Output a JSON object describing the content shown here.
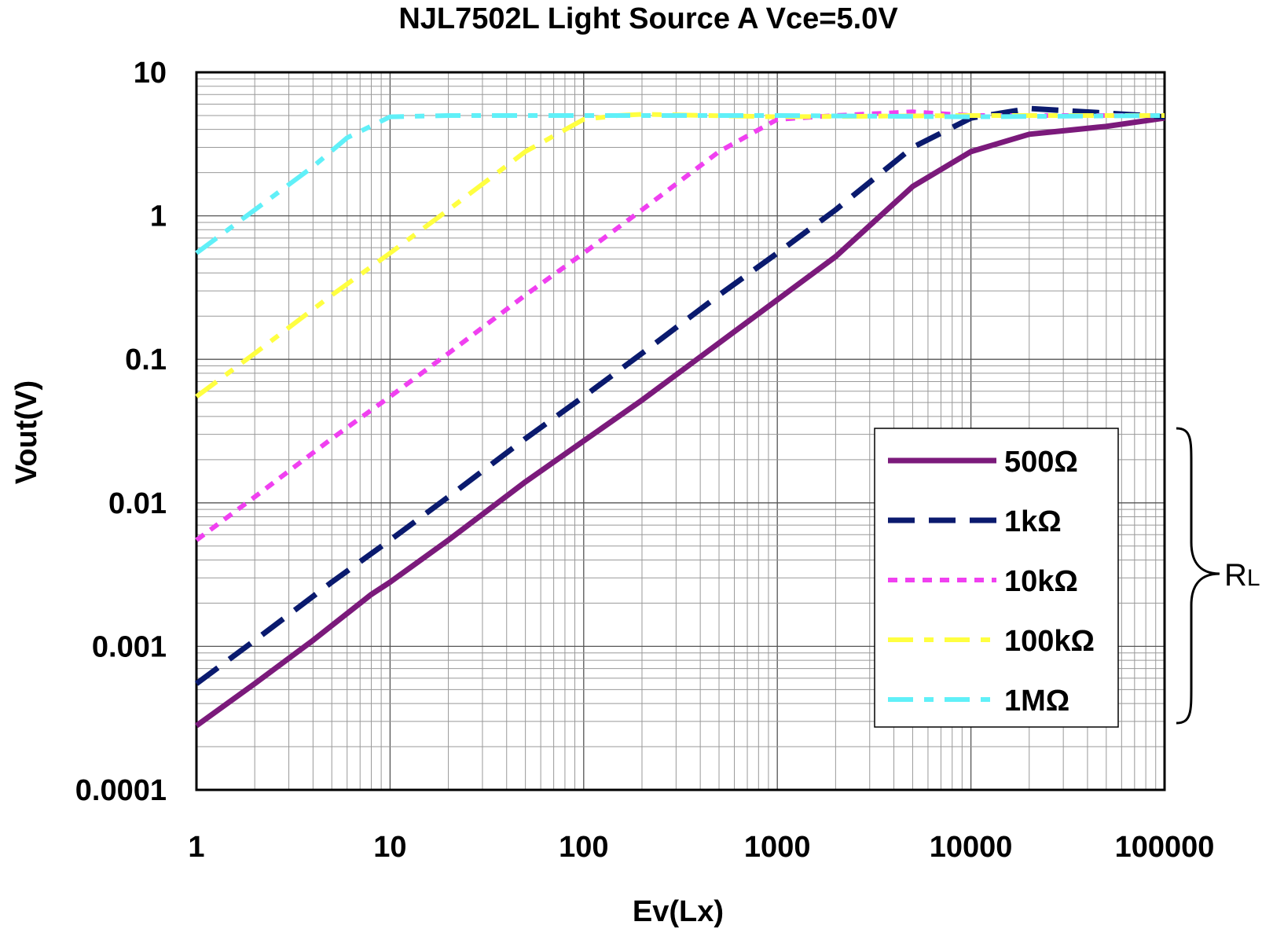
{
  "chart_data": {
    "type": "line",
    "title": "NJL7502L Light Source A Vce=5.0V",
    "xlabel": "Ev(Lx)",
    "ylabel": "Vout(V)",
    "x_scale": "log",
    "y_scale": "log",
    "xlim": [
      1,
      100000
    ],
    "ylim": [
      0.0001,
      10
    ],
    "x_ticks": [
      {
        "value": 1,
        "label": "1"
      },
      {
        "value": 10,
        "label": "10"
      },
      {
        "value": 100,
        "label": "100"
      },
      {
        "value": 1000,
        "label": "1000"
      },
      {
        "value": 10000,
        "label": "10000"
      },
      {
        "value": 100000,
        "label": "100000"
      }
    ],
    "y_ticks": [
      {
        "value": 10,
        "label": "10"
      },
      {
        "value": 1,
        "label": "1"
      },
      {
        "value": 0.1,
        "label": "0.1"
      },
      {
        "value": 0.01,
        "label": "0.01"
      },
      {
        "value": 0.001,
        "label": "0.001"
      },
      {
        "value": 0.0001,
        "label": "0.0001"
      }
    ],
    "grid": true,
    "legend_position": "lower-right",
    "legend_group_label": "R",
    "legend_group_label_sub": "L",
    "series": [
      {
        "name": "500Ω",
        "color": "#7b1a7b",
        "style": "solid",
        "x": [
          1,
          2,
          4,
          8,
          10,
          20,
          50,
          100,
          200,
          500,
          1000,
          2000,
          5000,
          10000,
          20000,
          50000,
          100000
        ],
        "y": [
          0.00028,
          0.00055,
          0.0011,
          0.0023,
          0.0028,
          0.0055,
          0.014,
          0.027,
          0.052,
          0.13,
          0.26,
          0.52,
          1.6,
          2.8,
          3.7,
          4.2,
          4.8
        ]
      },
      {
        "name": "1kΩ",
        "color": "#0a1a6e",
        "style": "dash",
        "x": [
          1,
          2,
          5,
          10,
          20,
          50,
          100,
          200,
          500,
          1000,
          2000,
          5000,
          10000,
          20000,
          50000,
          100000
        ],
        "y": [
          0.00055,
          0.0011,
          0.0028,
          0.0055,
          0.011,
          0.028,
          0.055,
          0.11,
          0.28,
          0.55,
          1.1,
          3.0,
          4.8,
          5.6,
          5.2,
          4.9
        ]
      },
      {
        "name": "10kΩ",
        "color": "#f040f0",
        "style": "dot",
        "x": [
          1,
          2,
          5,
          10,
          20,
          50,
          100,
          200,
          500,
          1000,
          2000,
          5000,
          10000,
          100000
        ],
        "y": [
          0.0055,
          0.011,
          0.028,
          0.055,
          0.11,
          0.28,
          0.55,
          1.1,
          2.8,
          4.7,
          5.0,
          5.3,
          5.0,
          5.0
        ]
      },
      {
        "name": "100kΩ",
        "color": "#ffff40",
        "style": "dashdot",
        "x": [
          1,
          2,
          5,
          10,
          20,
          50,
          100,
          150,
          200,
          1000,
          10000,
          100000
        ],
        "y": [
          0.055,
          0.11,
          0.28,
          0.55,
          1.1,
          2.8,
          4.7,
          5.0,
          5.1,
          4.9,
          5.0,
          5.0
        ]
      },
      {
        "name": "1MΩ",
        "color": "#60f0f8",
        "style": "dashdot",
        "x": [
          1,
          2,
          4,
          6,
          10,
          20,
          100,
          1000,
          10000,
          100000
        ],
        "y": [
          0.55,
          1.1,
          2.2,
          3.5,
          4.9,
          5.0,
          5.0,
          5.0,
          4.9,
          5.0
        ]
      }
    ]
  }
}
